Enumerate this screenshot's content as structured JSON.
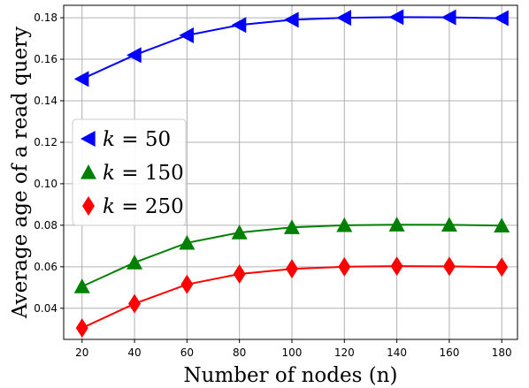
{
  "chart_data": {
    "type": "line",
    "xlabel": "Number of nodes (n)",
    "ylabel": "Average age of a read query",
    "x": [
      20,
      40,
      60,
      80,
      100,
      120,
      140,
      160,
      180
    ],
    "xticks": [
      "20",
      "40",
      "60",
      "80",
      "100",
      "120",
      "140",
      "160",
      "180"
    ],
    "yticks": [
      "0.04",
      "0.06",
      "0.08",
      "0.10",
      "0.12",
      "0.14",
      "0.16",
      "0.18"
    ],
    "xlim": [
      13,
      186
    ],
    "ylim": [
      0.025,
      0.186
    ],
    "grid": true,
    "legend_position": "center-left",
    "series": [
      {
        "name": "k = 50",
        "legend_var": "k",
        "legend_eq": " = ",
        "legend_num": "50",
        "color": "#0000ff",
        "marker": "triangle-left",
        "values": [
          0.1505,
          0.162,
          0.1715,
          0.1765,
          0.179,
          0.18,
          0.1803,
          0.1802,
          0.1798
        ]
      },
      {
        "name": "k = 150",
        "legend_var": "k",
        "legend_eq": " = ",
        "legend_num": "150",
        "color": "#008000",
        "marker": "triangle-up",
        "values": [
          0.0505,
          0.062,
          0.0715,
          0.0765,
          0.079,
          0.08,
          0.0803,
          0.0802,
          0.0798
        ]
      },
      {
        "name": "k = 250",
        "legend_var": "k",
        "legend_eq": " = ",
        "legend_num": "250",
        "color": "#ff0000",
        "marker": "diamond",
        "values": [
          0.0305,
          0.0422,
          0.0515,
          0.0565,
          0.059,
          0.06,
          0.0603,
          0.0602,
          0.0598
        ]
      }
    ]
  }
}
